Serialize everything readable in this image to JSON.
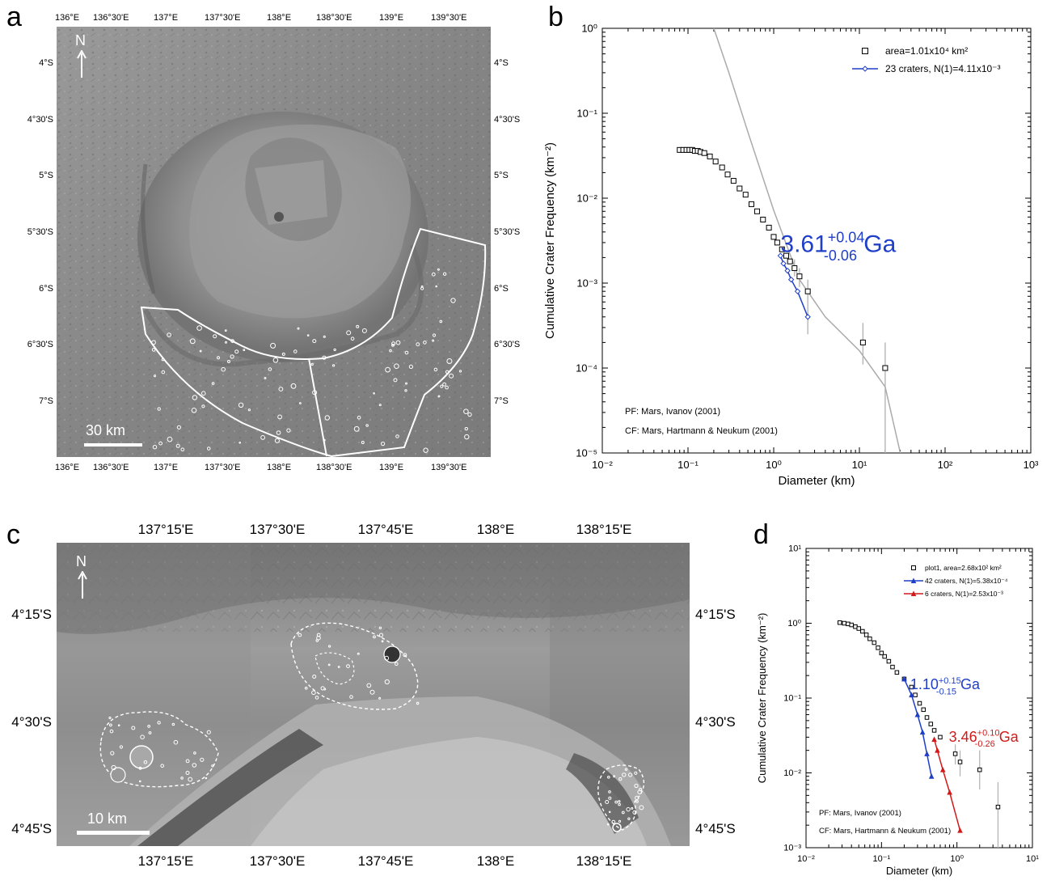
{
  "figure": {
    "panel_letters": [
      "a",
      "b",
      "c",
      "d"
    ]
  },
  "panel_a": {
    "top_lon_labels": [
      "136°E",
      "136°30'E",
      "137°E",
      "137°30'E",
      "138°E",
      "138°30'E",
      "139°E",
      "139°30'E"
    ],
    "bottom_lon_labels": [
      "136°E",
      "136°30'E",
      "137°E",
      "137°30'E",
      "138°E",
      "138°30'E",
      "139°E",
      "139°30'E"
    ],
    "lat_labels": [
      "4°S",
      "4°30'S",
      "5°S",
      "5°30'S",
      "6°S",
      "6°30'S",
      "7°S"
    ],
    "north_label": "N",
    "scale_label": "30 km"
  },
  "panel_c": {
    "top_lon_labels": [
      "137°15'E",
      "137°30'E",
      "137°45'E",
      "138°E",
      "138°15'E"
    ],
    "bottom_lon_labels": [
      "137°15'E",
      "137°30'E",
      "137°45'E",
      "138°E",
      "138°15'E"
    ],
    "lat_labels": [
      "4°15'S",
      "4°30'S",
      "4°45'S"
    ],
    "north_label": "N",
    "scale_label": "10 km"
  },
  "chart_data": [
    {
      "panel": "b",
      "type": "scatter",
      "xlabel": "Diameter (km)",
      "ylabel": "Cumulative Crater Frequency (km⁻²)",
      "xscale": "log",
      "yscale": "log",
      "xlim": [
        0.01,
        1000
      ],
      "ylim": [
        1e-05,
        1
      ],
      "x_tick_labels": [
        "10⁻²",
        "10⁻¹",
        "10⁰",
        "10¹",
        "10²",
        "10³"
      ],
      "y_tick_labels": [
        "10⁻⁵",
        "10⁻⁴",
        "10⁻³",
        "10⁻²",
        "10⁻¹",
        "10⁰"
      ],
      "legend_position": "top-right",
      "legend": [
        "area=1.01x10⁴ km²",
        "23 craters, N(1)=4.11x10⁻³"
      ],
      "series": [
        {
          "name": "area=1.01x10⁴ km²",
          "marker": "open-square",
          "color": "#000000",
          "points": [
            [
              0.08,
              0.037
            ],
            [
              0.088,
              0.037
            ],
            [
              0.096,
              0.037
            ],
            [
              0.104,
              0.037
            ],
            [
              0.112,
              0.037
            ],
            [
              0.12,
              0.036
            ],
            [
              0.13,
              0.036
            ],
            [
              0.14,
              0.035
            ],
            [
              0.155,
              0.034
            ],
            [
              0.18,
              0.031
            ],
            [
              0.21,
              0.027
            ],
            [
              0.25,
              0.023
            ],
            [
              0.29,
              0.019
            ],
            [
              0.34,
              0.016
            ],
            [
              0.4,
              0.013
            ],
            [
              0.47,
              0.011
            ],
            [
              0.55,
              0.0085
            ],
            [
              0.64,
              0.007
            ],
            [
              0.75,
              0.0056
            ],
            [
              0.88,
              0.0045
            ],
            [
              1.0,
              0.0035
            ],
            [
              1.1,
              0.003
            ],
            [
              1.25,
              0.0025
            ],
            [
              1.4,
              0.0021
            ],
            [
              1.55,
              0.0018
            ],
            [
              1.75,
              0.0015
            ],
            [
              2.0,
              0.0012
            ],
            [
              2.5,
              0.0008
            ],
            [
              11,
              0.0002
            ],
            [
              20,
              0.0001
            ]
          ],
          "error_bars": [
            [
              1.75,
              0.0012,
              0.0019
            ],
            [
              2.0,
              0.0009,
              0.0015
            ],
            [
              2.5,
              0.00025,
              0.0011
            ],
            [
              11,
              0.00011,
              0.00034
            ],
            [
              20,
              1e-05,
              0.0002
            ]
          ]
        },
        {
          "name": "23 craters, N(1)=4.11x10⁻³",
          "marker": "open-diamond",
          "color": "#1f3fc8",
          "points": [
            [
              1.2,
              0.0021
            ],
            [
              1.3,
              0.0017
            ],
            [
              1.45,
              0.0014
            ],
            [
              1.6,
              0.0011
            ],
            [
              1.9,
              0.0008
            ],
            [
              2.5,
              0.0004
            ]
          ]
        },
        {
          "name": "production function",
          "marker": "none",
          "color": "#aaaaaa",
          "points": [
            [
              0.2,
              1.0
            ],
            [
              0.3,
              0.3
            ],
            [
              0.5,
              0.06
            ],
            [
              1.0,
              0.0072
            ],
            [
              2.0,
              0.0011
            ],
            [
              4.0,
              0.0004
            ],
            [
              10,
              0.00016
            ],
            [
              20,
              6e-05
            ],
            [
              30,
              1e-05
            ]
          ]
        }
      ],
      "age_annotation": {
        "value": "3.61",
        "plus": "+0.04",
        "minus": "-0.06",
        "unit": "Ga",
        "color": "#1f3fc8"
      },
      "footnotes": [
        "PF: Mars, Ivanov (2001)",
        "CF: Mars, Hartmann & Neukum (2001)"
      ]
    },
    {
      "panel": "d",
      "type": "scatter",
      "xlabel": "Diameter (km)",
      "ylabel": "Cumulative Crater Frequency (km⁻²)",
      "xscale": "log",
      "yscale": "log",
      "xlim": [
        0.01,
        10
      ],
      "ylim": [
        0.001,
        10
      ],
      "x_tick_labels": [
        "10⁻²",
        "10⁻¹",
        "10⁰",
        "10¹"
      ],
      "y_tick_labels": [
        "10⁻³",
        "10⁻²",
        "10⁻¹",
        "10⁰",
        "10¹"
      ],
      "legend_position": "top-right",
      "legend": [
        "plot1, area=2.68x10² km²",
        "42 craters, N(1)=5.38x10⁻⁴",
        "6 craters, N(1)=2.53x10⁻³"
      ],
      "series": [
        {
          "name": "plot1, area=2.68x10² km²",
          "marker": "open-square",
          "color": "#000000",
          "points": [
            [
              0.028,
              1.02
            ],
            [
              0.032,
              1.0
            ],
            [
              0.036,
              0.98
            ],
            [
              0.04,
              0.95
            ],
            [
              0.045,
              0.9
            ],
            [
              0.05,
              0.85
            ],
            [
              0.056,
              0.78
            ],
            [
              0.063,
              0.7
            ],
            [
              0.07,
              0.62
            ],
            [
              0.08,
              0.55
            ],
            [
              0.09,
              0.47
            ],
            [
              0.1,
              0.4
            ],
            [
              0.11,
              0.36
            ],
            [
              0.125,
              0.31
            ],
            [
              0.14,
              0.26
            ],
            [
              0.16,
              0.22
            ],
            [
              0.2,
              0.18
            ],
            [
              0.25,
              0.14
            ],
            [
              0.28,
              0.11
            ],
            [
              0.32,
              0.085
            ],
            [
              0.36,
              0.07
            ],
            [
              0.4,
              0.055
            ],
            [
              0.45,
              0.045
            ],
            [
              0.5,
              0.037
            ],
            [
              0.6,
              0.03
            ],
            [
              0.95,
              0.018
            ],
            [
              1.1,
              0.014
            ],
            [
              2.0,
              0.011
            ],
            [
              3.5,
              0.0035
            ]
          ],
          "error_bars": [
            [
              0.95,
              0.013,
              0.024
            ],
            [
              1.1,
              0.009,
              0.02
            ],
            [
              2.0,
              0.006,
              0.02
            ],
            [
              3.5,
              0.001,
              0.0075
            ]
          ]
        },
        {
          "name": "42 craters, N(1)=5.38x10⁻⁴",
          "marker": "triangle",
          "color": "#1f3fc8",
          "points": [
            [
              0.2,
              0.18
            ],
            [
              0.25,
              0.11
            ],
            [
              0.3,
              0.06
            ],
            [
              0.35,
              0.035
            ],
            [
              0.4,
              0.018
            ],
            [
              0.46,
              0.009
            ]
          ]
        },
        {
          "name": "6 craters, N(1)=2.53x10⁻³",
          "marker": "triangle",
          "color": "#d21a1a",
          "points": [
            [
              0.5,
              0.028
            ],
            [
              0.55,
              0.02
            ],
            [
              0.65,
              0.011
            ],
            [
              0.8,
              0.0055
            ],
            [
              1.1,
              0.0017
            ]
          ]
        }
      ],
      "age_annotations": [
        {
          "value": "1.10",
          "plus": "+0.15",
          "minus": "-0.15",
          "unit": "Ga",
          "color": "#1f3fc8"
        },
        {
          "value": "3.46",
          "plus": "+0.10",
          "minus": "-0.26",
          "unit": "Ga",
          "color": "#d21a1a"
        }
      ],
      "footnotes": [
        "PF: Mars, Ivanov (2001)",
        "CF: Mars, Hartmann & Neukum (2001)"
      ]
    }
  ]
}
